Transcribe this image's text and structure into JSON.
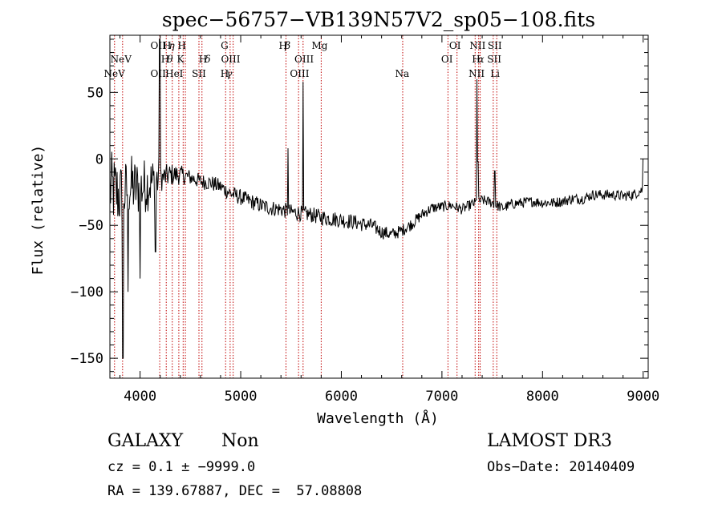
{
  "chart_data": {
    "type": "line",
    "title": "spec−56757−VB139N57V2_sp05−108.fits",
    "xlabel": "Wavelength (Å)",
    "ylabel": "Flux (relative)",
    "xlim": [
      3700,
      9050
    ],
    "ylim": [
      -165,
      93
    ],
    "x_ticks": [
      4000,
      5000,
      6000,
      7000,
      8000,
      9000
    ],
    "y_ticks": [
      50,
      0,
      -50,
      -100,
      -150
    ],
    "y_tick_labels": [
      "50",
      "0",
      "−50",
      "−100",
      "−150"
    ],
    "grid": false,
    "line_color": "#000000",
    "marker_color": "#c00000",
    "spectrum_anchors": {
      "wavelength": [
        3700,
        3760,
        3800,
        3850,
        3900,
        3950,
        4000,
        4100,
        4200,
        4300,
        4400,
        4500,
        4600,
        4700,
        4800,
        4900,
        5000,
        5100,
        5200,
        5300,
        5400,
        5500,
        5600,
        5700,
        5800,
        5900,
        6000,
        6100,
        6200,
        6300,
        6400,
        6500,
        6600,
        6700,
        6800,
        6900,
        7000,
        7100,
        7200,
        7300,
        7400,
        7500,
        7600,
        7700,
        7800,
        7900,
        8000,
        8100,
        8200,
        8300,
        8400,
        8500,
        8600,
        8700,
        8800,
        8900,
        9000
      ],
      "flux": [
        -22,
        -25,
        -28,
        -26,
        -20,
        -22,
        -22,
        -18,
        -15,
        -12,
        -12,
        -14,
        -17,
        -18,
        -21,
        -26,
        -29,
        -32,
        -35,
        -37,
        -38,
        -40,
        -41,
        -42,
        -44,
        -45,
        -46,
        -47,
        -49,
        -50,
        -55,
        -57,
        -54,
        -49,
        -42,
        -37,
        -36,
        -35,
        -38,
        -34,
        -31,
        -33,
        -37,
        -34,
        -33,
        -32,
        -33,
        -33,
        -32,
        -30,
        -30,
        -27,
        -27,
        -27,
        -28,
        -27,
        -23
      ]
    },
    "spectrum_noise": {
      "wavelength": [
        3700,
        4200,
        4500,
        5000,
        6000,
        7000,
        8000,
        9000
      ],
      "amplitude": [
        16,
        10,
        6,
        6,
        6,
        4,
        4,
        4
      ]
    },
    "spectrum_features": [
      {
        "wavelength": 4195,
        "flux": 90
      },
      {
        "wavelength": 3830,
        "flux": -150
      },
      {
        "wavelength": 3880,
        "flux": -100
      },
      {
        "wavelength": 4000,
        "flux": -90
      },
      {
        "wavelength": 4155,
        "flux": -70
      },
      {
        "wavelength": 5470,
        "flux": 8
      },
      {
        "wavelength": 5620,
        "flux": 58
      },
      {
        "wavelength": 7350,
        "flux": 60
      },
      {
        "wavelength": 7355,
        "flux": -2
      },
      {
        "wavelength": 7525,
        "flux": -9
      },
      {
        "wavelength": 9000,
        "flux": 0
      }
    ],
    "line_markers": [
      3746,
      3826,
      4195,
      4260,
      4320,
      4385,
      4428,
      4450,
      4585,
      4615,
      4850,
      4895,
      4925,
      5450,
      5575,
      5620,
      5800,
      6610,
      7060,
      7150,
      7330,
      7365,
      7380,
      7510,
      7545
    ],
    "line_labels": [
      {
        "text": "NeV",
        "wl": 3810,
        "row": 2,
        "rich": "plain"
      },
      {
        "text": "NeV",
        "wl": 3745,
        "row": 3,
        "rich": "plain"
      },
      {
        "text": "OII",
        "wl": 4180,
        "row": 1,
        "rich": "plain"
      },
      {
        "text": "H",
        "wl": 4268,
        "row": 1,
        "rich": "plain"
      },
      {
        "text": "η",
        "wl": 4315,
        "row": 1,
        "rich": "greek"
      },
      {
        "text": "H",
        "wl": 4415,
        "row": 1,
        "rich": "plain"
      },
      {
        "text": "H",
        "wl": 4250,
        "row": 2,
        "rich": "plain"
      },
      {
        "text": "θ",
        "wl": 4297,
        "row": 2,
        "rich": "greek"
      },
      {
        "text": "K",
        "wl": 4402,
        "row": 2,
        "rich": "plain"
      },
      {
        "text": "H",
        "wl": 4625,
        "row": 2,
        "rich": "plain"
      },
      {
        "text": "δ",
        "wl": 4672,
        "row": 2,
        "rich": "greek"
      },
      {
        "text": "OII",
        "wl": 4180,
        "row": 3,
        "rich": "plain"
      },
      {
        "text": "HeI",
        "wl": 4340,
        "row": 3,
        "rich": "plain"
      },
      {
        "text": "SII",
        "wl": 4585,
        "row": 3,
        "rich": "plain"
      },
      {
        "text": "G",
        "wl": 4840,
        "row": 1,
        "rich": "plain"
      },
      {
        "text": "OIII",
        "wl": 4900,
        "row": 2,
        "rich": "plain"
      },
      {
        "text": "H",
        "wl": 4840,
        "row": 3,
        "rich": "plain"
      },
      {
        "text": "γ",
        "wl": 4887,
        "row": 3,
        "rich": "greek"
      },
      {
        "text": "H",
        "wl": 5420,
        "row": 1,
        "rich": "plain"
      },
      {
        "text": "β",
        "wl": 5467,
        "row": 1,
        "rich": "greek"
      },
      {
        "text": "Mg",
        "wl": 5785,
        "row": 1,
        "rich": "plain"
      },
      {
        "text": "OIII",
        "wl": 5630,
        "row": 2,
        "rich": "plain"
      },
      {
        "text": "OIII",
        "wl": 5585,
        "row": 3,
        "rich": "plain"
      },
      {
        "text": "Na",
        "wl": 6605,
        "row": 3,
        "rich": "plain"
      },
      {
        "text": "OI",
        "wl": 7130,
        "row": 1,
        "rich": "plain"
      },
      {
        "text": "OI",
        "wl": 7050,
        "row": 2,
        "rich": "plain"
      },
      {
        "text": "NII",
        "wl": 7355,
        "row": 1,
        "rich": "plain"
      },
      {
        "text": "SII",
        "wl": 7525,
        "row": 1,
        "rich": "plain"
      },
      {
        "text": "H",
        "wl": 7340,
        "row": 2,
        "rich": "plain"
      },
      {
        "text": "α",
        "wl": 7387,
        "row": 2,
        "rich": "greek"
      },
      {
        "text": "SII",
        "wl": 7520,
        "row": 2,
        "rich": "plain"
      },
      {
        "text": "NII",
        "wl": 7345,
        "row": 3,
        "rich": "plain"
      },
      {
        "text": "Li",
        "wl": 7528,
        "row": 3,
        "rich": "plain"
      }
    ]
  },
  "footer": {
    "object_class": "GALAXY",
    "subclass": "Non",
    "survey": "LAMOST DR3",
    "redshift": "cz = 0.1 ± −9999.0",
    "obs_date": "Obs−Date: 20140409",
    "coordinates": "RA = 139.67887, DEC =  57.08808"
  }
}
